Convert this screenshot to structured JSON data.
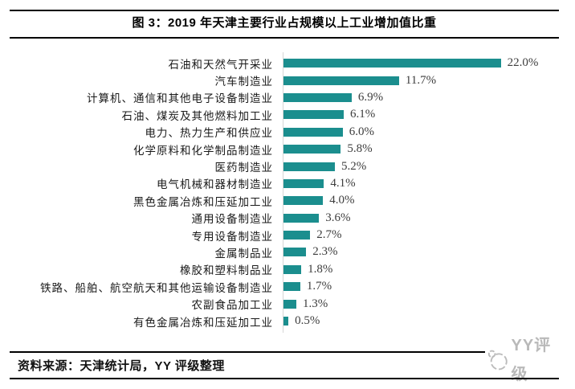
{
  "header": {
    "title": "图 3：2019 年天津主要行业占规模以上工业增加值比重"
  },
  "chart_data": {
    "type": "bar",
    "orientation": "horizontal",
    "title": "图 3：2019 年天津主要行业占规模以上工业增加值比重",
    "xlabel": "",
    "ylabel": "",
    "xlim": [
      0,
      24
    ],
    "grid": false,
    "legend": false,
    "bar_color": "#1b8e8e",
    "axis_color": "#d6d6d6",
    "categories": [
      "石油和天然气开采业",
      "汽车制造业",
      "计算机、通信和其他电子设备制造业",
      "石油、煤炭及其他燃料加工业",
      "电力、热力生产和供应业",
      "化学原料和化学制品制造业",
      "医药制造业",
      "电气机械和器材制造业",
      "黑色金属冶炼和压延加工业",
      "通用设备制造业",
      "专用设备制造业",
      "金属制品业",
      "橡胶和塑料制品业",
      "铁路、船舶、航空航天和其他运输设备制造业",
      "农副食品加工业",
      "有色金属冶炼和压延加工业"
    ],
    "values": [
      22.0,
      11.7,
      6.9,
      6.1,
      6.0,
      5.8,
      5.2,
      4.1,
      4.0,
      3.6,
      2.7,
      2.3,
      1.8,
      1.7,
      1.3,
      0.5
    ],
    "value_labels": [
      "22.0%",
      "11.7%",
      "6.9%",
      "6.1%",
      "6.0%",
      "5.8%",
      "5.2%",
      "4.1%",
      "4.0%",
      "3.6%",
      "2.7%",
      "2.3%",
      "1.8%",
      "1.7%",
      "1.3%",
      "0.5%"
    ]
  },
  "footer": {
    "source": "资料来源：天津统计局，YY 评级整理",
    "logo_text": "YY评级"
  }
}
